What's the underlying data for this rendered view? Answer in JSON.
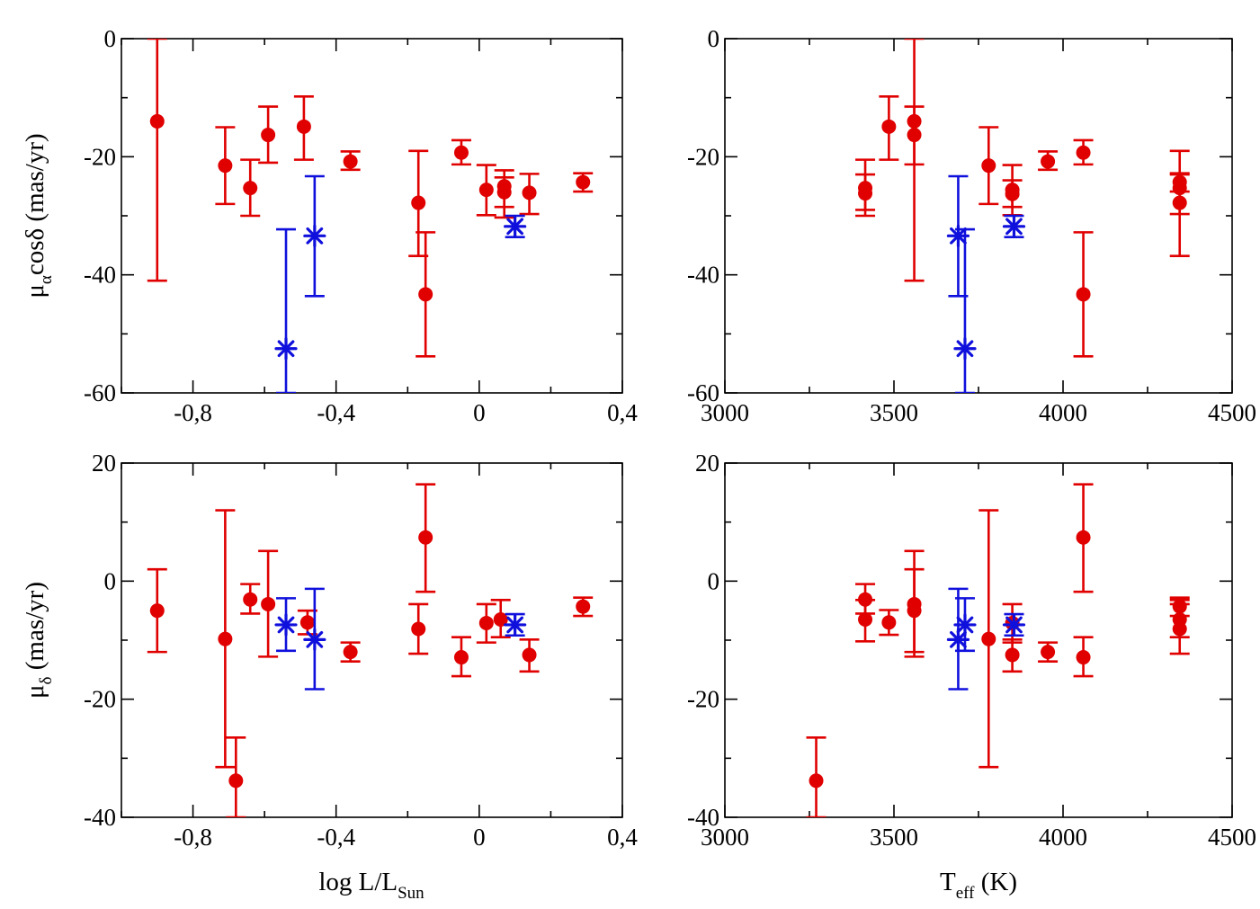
{
  "colors": {
    "red_series": "#e00000",
    "blue_series": "#1010dd"
  },
  "chart_data": [
    {
      "type": "scatter",
      "title": "",
      "ylabel": "μ_α cosδ (mas/yr)",
      "ylabel_parts": {
        "main": "μ",
        "sub": "α",
        "rest": "cosδ (mas/yr)"
      },
      "xlabel": "",
      "xlim": [
        -1.0,
        0.4
      ],
      "ylim": [
        -60,
        0
      ],
      "xticks": [
        -0.8,
        -0.4,
        0,
        0.4
      ],
      "xtick_labels": [
        "-0,8",
        "-0,4",
        "0",
        "0,4"
      ],
      "yticks": [
        -60,
        -40,
        -20,
        0
      ],
      "ytick_labels": [
        "-60",
        "-40",
        "-20",
        "0"
      ],
      "series": [
        {
          "marker": "circle",
          "color": "#e00000",
          "points": [
            {
              "x": -0.9,
              "y": -14,
              "ylo": -41,
              "yhi": 0
            },
            {
              "x": -0.71,
              "y": -21.5,
              "ylo": -28,
              "yhi": -15
            },
            {
              "x": -0.64,
              "y": -25.3,
              "ylo": -30,
              "yhi": -20.5
            },
            {
              "x": -0.59,
              "y": -16.3,
              "ylo": -21,
              "yhi": -11.5
            },
            {
              "x": -0.49,
              "y": -14.9,
              "ylo": -20.5,
              "yhi": -9.8
            },
            {
              "x": -0.36,
              "y": -20.8,
              "ylo": -22.2,
              "yhi": -19.1
            },
            {
              "x": -0.17,
              "y": -27.8,
              "ylo": -36.8,
              "yhi": -19
            },
            {
              "x": -0.15,
              "y": -43.3,
              "ylo": -53.8,
              "yhi": -32.8
            },
            {
              "x": -0.05,
              "y": -19.3,
              "ylo": -21.3,
              "yhi": -17.2
            },
            {
              "x": 0.02,
              "y": -25.6,
              "ylo": -29.9,
              "yhi": -21.4
            },
            {
              "x": 0.07,
              "y": -25,
              "ylo": -30.3,
              "yhi": -22.3
            },
            {
              "x": 0.07,
              "y": -26,
              "ylo": -28.5,
              "yhi": -23.5
            },
            {
              "x": 0.14,
              "y": -26.1,
              "ylo": -29.7,
              "yhi": -22.9
            },
            {
              "x": 0.29,
              "y": -24.3,
              "ylo": -25.9,
              "yhi": -22.8
            }
          ]
        },
        {
          "marker": "asterisk",
          "color": "#1010dd",
          "points": [
            {
              "x": -0.54,
              "y": -52.5,
              "ylo": -60,
              "yhi": -32.3
            },
            {
              "x": -0.46,
              "y": -33.4,
              "ylo": -43.6,
              "yhi": -23.3
            },
            {
              "x": 0.1,
              "y": -31.8,
              "ylo": -33.6,
              "yhi": -30
            }
          ]
        }
      ]
    },
    {
      "type": "scatter",
      "title": "",
      "ylabel": "",
      "xlabel": "",
      "xlim": [
        3000,
        4500
      ],
      "ylim": [
        -60,
        0
      ],
      "xticks": [
        3000,
        3500,
        4000,
        4500
      ],
      "xtick_labels": [
        "3000",
        "3500",
        "4000",
        "4500"
      ],
      "yticks": [
        -60,
        -40,
        -20,
        0
      ],
      "ytick_labels": [
        "-60",
        "-40",
        "-20",
        "0"
      ],
      "series": [
        {
          "marker": "circle",
          "color": "#e00000",
          "points": [
            {
              "x": 3415,
              "y": -25.3,
              "ylo": -30,
              "yhi": -20.5
            },
            {
              "x": 3415,
              "y": -26.2,
              "ylo": -29,
              "yhi": -23
            },
            {
              "x": 3485,
              "y": -14.9,
              "ylo": -20.5,
              "yhi": -9.8
            },
            {
              "x": 3560,
              "y": -14,
              "ylo": -41,
              "yhi": 0
            },
            {
              "x": 3560,
              "y": -16.3,
              "ylo": -21.3,
              "yhi": -11.5
            },
            {
              "x": 3780,
              "y": -21.5,
              "ylo": -28,
              "yhi": -15
            },
            {
              "x": 3850,
              "y": -25.6,
              "ylo": -29.9,
              "yhi": -21.4
            },
            {
              "x": 3850,
              "y": -26.3,
              "ylo": -28.5,
              "yhi": -24
            },
            {
              "x": 3955,
              "y": -20.8,
              "ylo": -22.2,
              "yhi": -19.1
            },
            {
              "x": 4060,
              "y": -19.3,
              "ylo": -21.3,
              "yhi": -17.2
            },
            {
              "x": 4060,
              "y": -43.3,
              "ylo": -53.8,
              "yhi": -32.8
            },
            {
              "x": 4345,
              "y": -24.3,
              "ylo": -25.9,
              "yhi": -22.8
            },
            {
              "x": 4345,
              "y": -25.3,
              "ylo": -29.7,
              "yhi": -19
            },
            {
              "x": 4345,
              "y": -27.8,
              "ylo": -36.8,
              "yhi": -23
            }
          ]
        },
        {
          "marker": "asterisk",
          "color": "#1010dd",
          "points": [
            {
              "x": 3690,
              "y": -33.4,
              "ylo": -43.6,
              "yhi": -23.3
            },
            {
              "x": 3710,
              "y": -52.5,
              "ylo": -60,
              "yhi": -32.3
            },
            {
              "x": 3855,
              "y": -31.8,
              "ylo": -33.6,
              "yhi": -30
            }
          ]
        }
      ]
    },
    {
      "type": "scatter",
      "title": "",
      "ylabel": "μ_δ (mas/yr)",
      "ylabel_parts": {
        "main": "μ",
        "sub": "δ",
        "rest": " (mas/yr)"
      },
      "xlabel": "log L/L_Sun",
      "xlabel_parts": {
        "main": "log L/L",
        "sub": "Sun",
        "rest": ""
      },
      "xlim": [
        -1.0,
        0.4
      ],
      "ylim": [
        -40,
        20
      ],
      "xticks": [
        -0.8,
        -0.4,
        0,
        0.4
      ],
      "xtick_labels": [
        "-0,8",
        "-0,4",
        "0",
        "0,4"
      ],
      "yticks": [
        -40,
        -20,
        0,
        20
      ],
      "ytick_labels": [
        "-40",
        "-20",
        "0",
        "20"
      ],
      "series": [
        {
          "marker": "circle",
          "color": "#e00000",
          "points": [
            {
              "x": -0.9,
              "y": -5,
              "ylo": -12,
              "yhi": 2
            },
            {
              "x": -0.71,
              "y": -9.8,
              "ylo": -31.5,
              "yhi": 12
            },
            {
              "x": -0.68,
              "y": -33.8,
              "ylo": -40,
              "yhi": -26.5
            },
            {
              "x": -0.64,
              "y": -3.1,
              "ylo": -5.5,
              "yhi": -0.5
            },
            {
              "x": -0.59,
              "y": -3.9,
              "ylo": -12.8,
              "yhi": 5.1
            },
            {
              "x": -0.48,
              "y": -7,
              "ylo": -9,
              "yhi": -5
            },
            {
              "x": -0.36,
              "y": -12,
              "ylo": -13.6,
              "yhi": -10.4
            },
            {
              "x": -0.17,
              "y": -8.1,
              "ylo": -12.3,
              "yhi": -3.9
            },
            {
              "x": -0.15,
              "y": 7.4,
              "ylo": -1.8,
              "yhi": 16.4
            },
            {
              "x": -0.05,
              "y": -12.9,
              "ylo": -16.1,
              "yhi": -9.5
            },
            {
              "x": 0.02,
              "y": -7.1,
              "ylo": -10.4,
              "yhi": -3.9
            },
            {
              "x": 0.06,
              "y": -6.5,
              "ylo": -9.5,
              "yhi": -3.2
            },
            {
              "x": 0.14,
              "y": -12.5,
              "ylo": -15.3,
              "yhi": -9.9
            },
            {
              "x": 0.29,
              "y": -4.3,
              "ylo": -5.9,
              "yhi": -2.8
            }
          ]
        },
        {
          "marker": "asterisk",
          "color": "#1010dd",
          "points": [
            {
              "x": -0.54,
              "y": -7.4,
              "ylo": -11.8,
              "yhi": -2.9
            },
            {
              "x": -0.46,
              "y": -9.9,
              "ylo": -18.3,
              "yhi": -1.3
            },
            {
              "x": 0.1,
              "y": -7.4,
              "ylo": -9.2,
              "yhi": -5.6
            }
          ]
        }
      ]
    },
    {
      "type": "scatter",
      "title": "",
      "ylabel": "",
      "xlabel": "T_eff (K)",
      "xlabel_parts": {
        "main": "T",
        "sub": "eff",
        "rest": " (K)"
      },
      "xlim": [
        3000,
        4500
      ],
      "ylim": [
        -40,
        20
      ],
      "xticks": [
        3000,
        3500,
        4000,
        4500
      ],
      "xtick_labels": [
        "3000",
        "3500",
        "4000",
        "4500"
      ],
      "yticks": [
        -40,
        -20,
        0,
        20
      ],
      "ytick_labels": [
        "-40",
        "-20",
        "0",
        "20"
      ],
      "series": [
        {
          "marker": "circle",
          "color": "#e00000",
          "points": [
            {
              "x": 3270,
              "y": -33.8,
              "ylo": -40,
              "yhi": -26.5
            },
            {
              "x": 3415,
              "y": -3.1,
              "ylo": -5.5,
              "yhi": -0.5
            },
            {
              "x": 3415,
              "y": -6.5,
              "ylo": -10.2,
              "yhi": -3.2
            },
            {
              "x": 3485,
              "y": -7,
              "ylo": -9.1,
              "yhi": -4.9
            },
            {
              "x": 3560,
              "y": -3.9,
              "ylo": -12.8,
              "yhi": 5.1
            },
            {
              "x": 3560,
              "y": -5,
              "ylo": -12,
              "yhi": 2
            },
            {
              "x": 3780,
              "y": -9.8,
              "ylo": -31.5,
              "yhi": 12
            },
            {
              "x": 3850,
              "y": -7.1,
              "ylo": -10.4,
              "yhi": -3.9
            },
            {
              "x": 3850,
              "y": -12.5,
              "ylo": -15.3,
              "yhi": -9.9
            },
            {
              "x": 3955,
              "y": -12,
              "ylo": -13.6,
              "yhi": -10.4
            },
            {
              "x": 4060,
              "y": 7.4,
              "ylo": -1.8,
              "yhi": 16.4
            },
            {
              "x": 4060,
              "y": -12.9,
              "ylo": -16.1,
              "yhi": -9.5
            },
            {
              "x": 4345,
              "y": -4.3,
              "ylo": -5.9,
              "yhi": -2.8
            },
            {
              "x": 4345,
              "y": -6.5,
              "ylo": -9.5,
              "yhi": -3.2
            },
            {
              "x": 4345,
              "y": -8.1,
              "ylo": -12.3,
              "yhi": -3.9
            }
          ]
        },
        {
          "marker": "asterisk",
          "color": "#1010dd",
          "points": [
            {
              "x": 3690,
              "y": -9.9,
              "ylo": -18.3,
              "yhi": -1.3
            },
            {
              "x": 3710,
              "y": -7.4,
              "ylo": -11.8,
              "yhi": -2.9
            },
            {
              "x": 3855,
              "y": -7.4,
              "ylo": -9.2,
              "yhi": -5.6
            }
          ]
        }
      ]
    }
  ]
}
